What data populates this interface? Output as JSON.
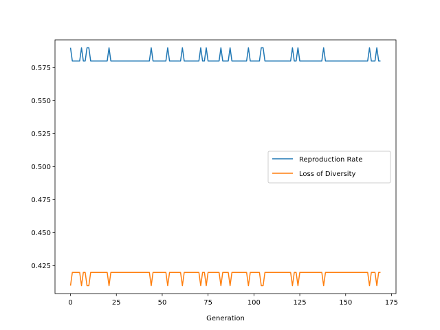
{
  "chart_data": {
    "type": "line",
    "title": "",
    "xlabel": "Generation",
    "ylabel": "",
    "xlim": [
      -8.45,
      177.45
    ],
    "ylim": [
      0.404,
      0.596
    ],
    "xticks": [
      0,
      25,
      50,
      75,
      100,
      125,
      150,
      175
    ],
    "xtick_labels": [
      "0",
      "25",
      "50",
      "75",
      "100",
      "125",
      "150",
      "175"
    ],
    "yticks": [
      0.425,
      0.45,
      0.475,
      0.5,
      0.525,
      0.55,
      0.575
    ],
    "ytick_labels": [
      "0.425",
      "0.450",
      "0.475",
      "0.500",
      "0.525",
      "0.550",
      "0.575"
    ],
    "grid": false,
    "legend_position": "center-right",
    "n_points": 170,
    "x_start": 0,
    "x_step": 1,
    "series": [
      {
        "name": "Reproduction Rate",
        "color": "#1f77b4",
        "base": 0.58,
        "spike": 0.59,
        "spike_x": [
          0,
          6,
          9,
          10,
          21,
          44,
          53,
          61,
          71,
          74,
          82,
          87,
          97,
          104,
          105,
          121,
          124,
          138,
          163,
          167
        ]
      },
      {
        "name": "Loss of Diversity",
        "color": "#ff7f0e",
        "base": 0.42,
        "spike": 0.41,
        "spike_x": [
          0,
          6,
          9,
          10,
          21,
          44,
          53,
          61,
          71,
          74,
          82,
          87,
          97,
          104,
          105,
          121,
          124,
          138,
          163,
          167
        ]
      }
    ]
  }
}
